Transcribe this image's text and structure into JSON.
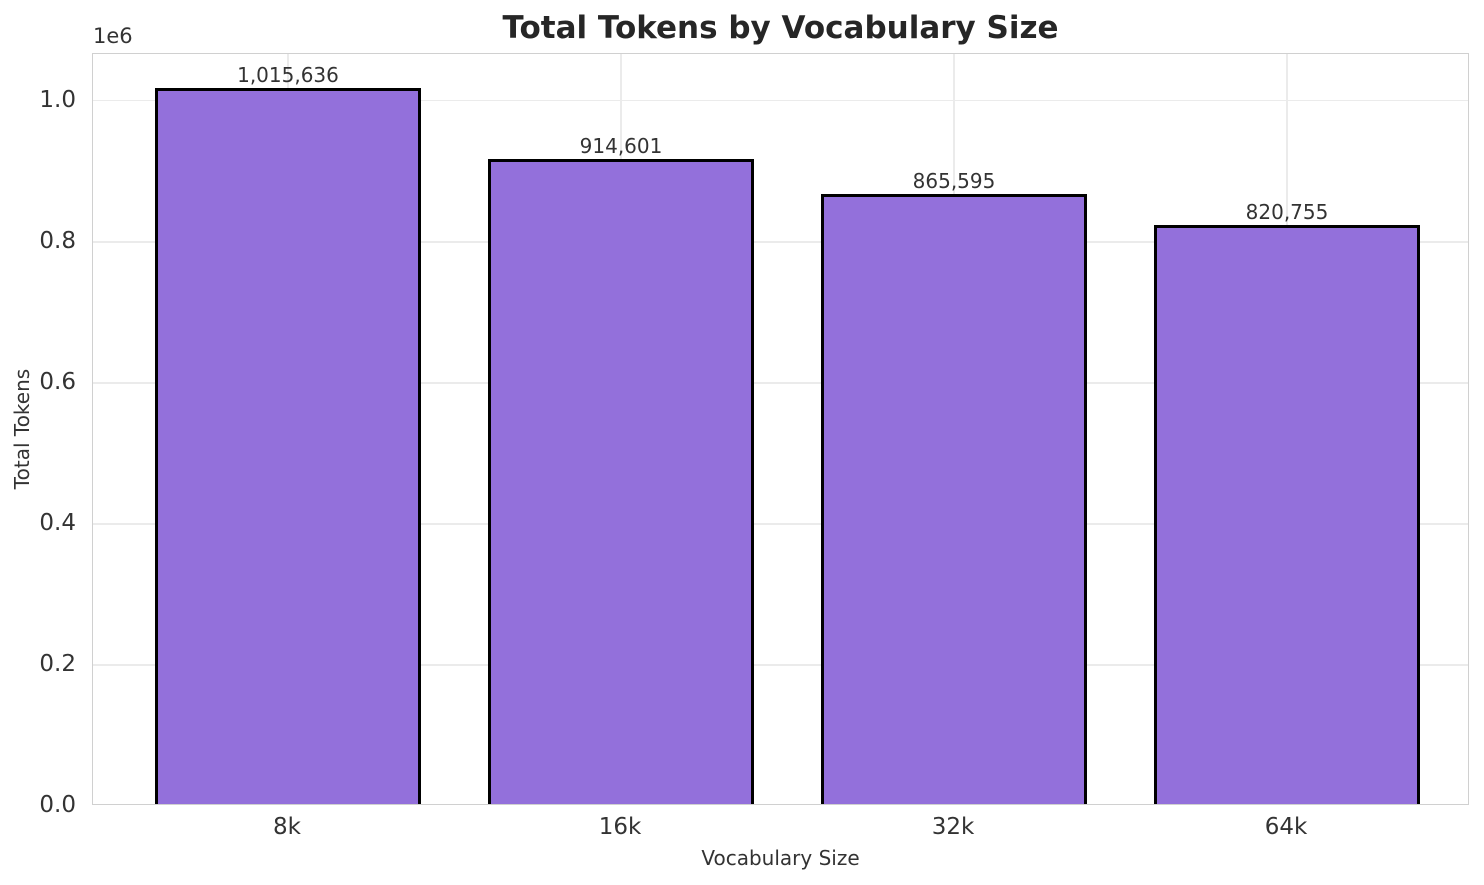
{
  "chart_data": {
    "type": "bar",
    "title": "Total Tokens by Vocabulary Size",
    "xlabel": "Vocabulary Size",
    "ylabel": "Total Tokens",
    "categories": [
      "8k",
      "16k",
      "32k",
      "64k"
    ],
    "values": [
      1015636,
      914601,
      865595,
      820755
    ],
    "value_labels": [
      "1,015,636",
      "914,601",
      "865,595",
      "820,755"
    ],
    "offset_text": "1e6",
    "y_ticks": [
      {
        "label": "0.0",
        "value": 0
      },
      {
        "label": "0.2",
        "value": 200000
      },
      {
        "label": "0.4",
        "value": 400000
      },
      {
        "label": "0.6",
        "value": 600000
      },
      {
        "label": "0.8",
        "value": 800000
      },
      {
        "label": "1.0",
        "value": 1000000
      }
    ],
    "ylim": [
      0,
      1066418
    ],
    "grid": true,
    "legend": "none",
    "colors": {
      "bar_fill": "#9370DB",
      "bar_edge": "#000000",
      "grid": "#ebebeb",
      "spine": "#d0d0d0",
      "text": "#333333",
      "title": "#262626",
      "background": "#ffffff"
    }
  }
}
